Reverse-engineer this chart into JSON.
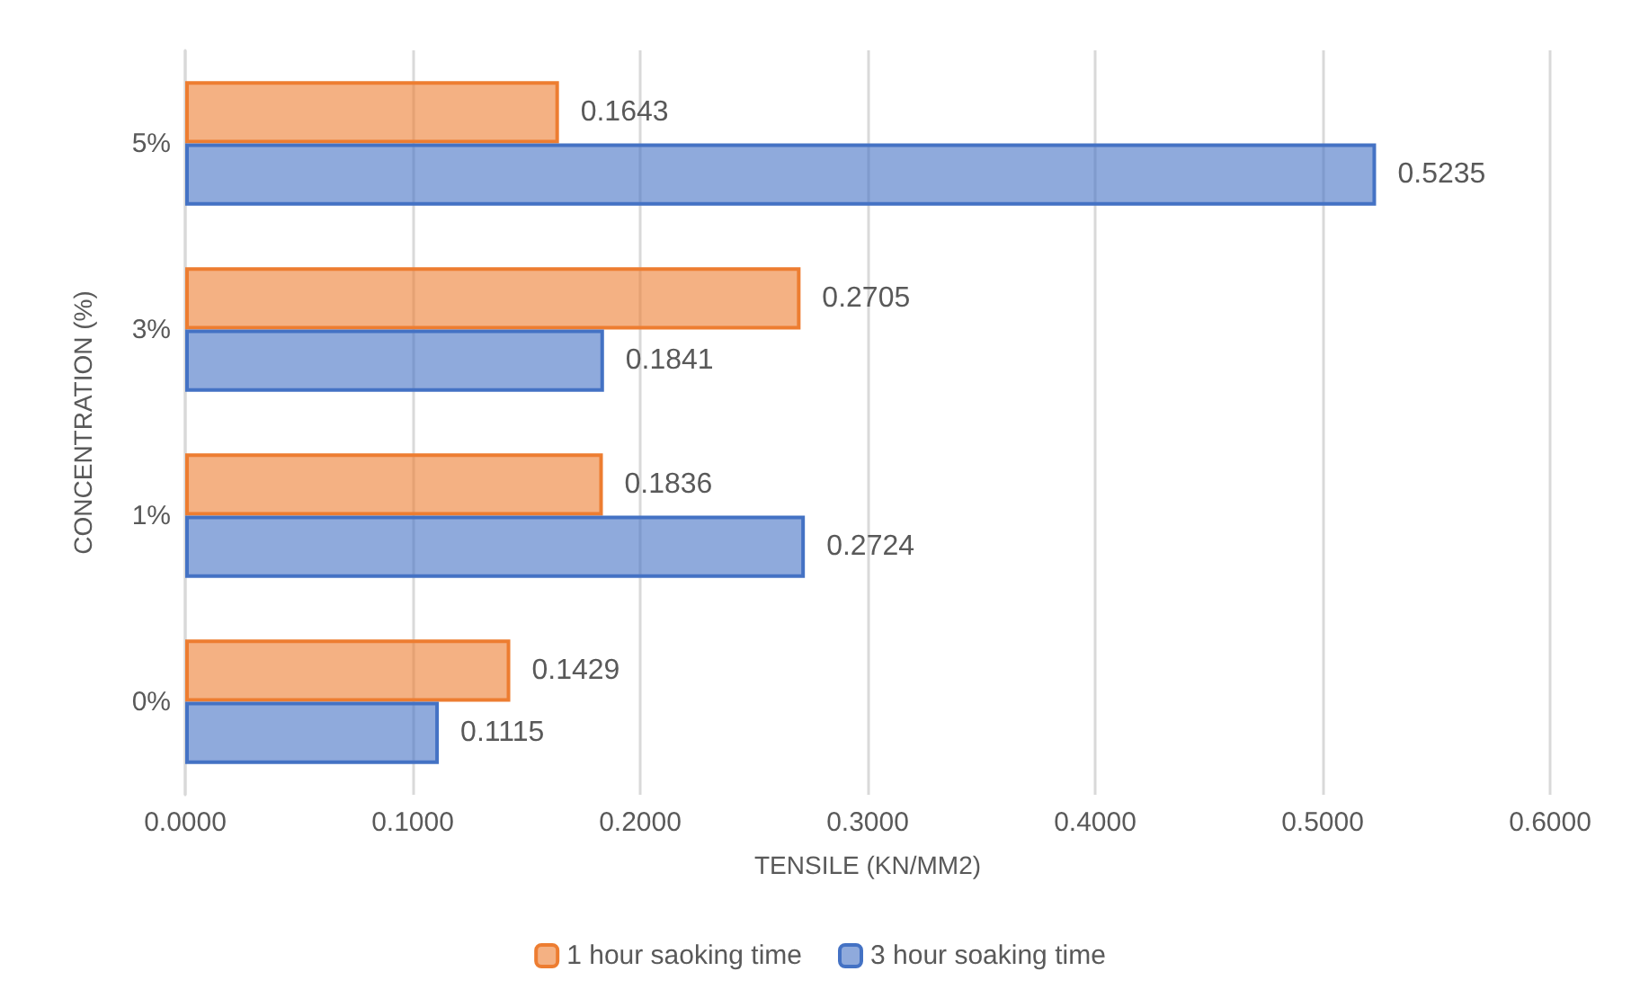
{
  "chart_data": {
    "type": "bar",
    "orientation": "horizontal",
    "xlabel": "TENSILE (KN/MM2)",
    "ylabel": "CONCENTRATION (%)",
    "categories": [
      "5%",
      "3%",
      "1%",
      "0%"
    ],
    "series": [
      {
        "name": "1 hour saoking time",
        "color": "#ed7d31",
        "values": [
          0.1643,
          0.2705,
          0.1836,
          0.1429
        ]
      },
      {
        "name": "3 hour soaking time",
        "color": "#4472c4",
        "values": [
          0.5235,
          0.1841,
          0.2724,
          0.1115
        ]
      }
    ],
    "xlim": [
      0,
      0.6
    ],
    "xticks": [
      {
        "value": 0,
        "label": "0.0000"
      },
      {
        "value": 0.1,
        "label": "0.1000"
      },
      {
        "value": 0.2,
        "label": "0.2000"
      },
      {
        "value": 0.3,
        "label": "0.3000"
      },
      {
        "value": 0.4,
        "label": "0.4000"
      },
      {
        "value": 0.5,
        "label": "0.5000"
      },
      {
        "value": 0.6,
        "label": "0.6000"
      }
    ],
    "grid": "x",
    "legend": "bottom",
    "data_labels": true
  }
}
